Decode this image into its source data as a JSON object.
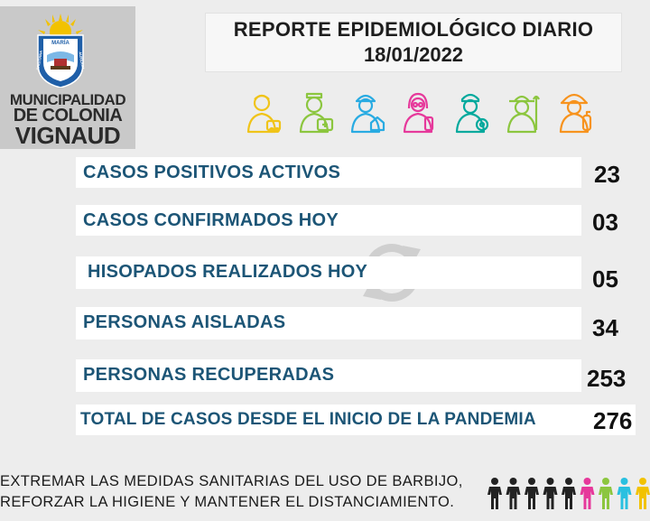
{
  "logo": {
    "line1": "MUNICIPALIDAD",
    "line2": "DE COLONIA",
    "line3": "VIGNAUD",
    "shield_top": "MARÍA",
    "shield_left": "CRISTIANA",
    "shield_right": "AUXILIUM"
  },
  "header": {
    "title": "REPORTE EPIDEMIOLÓGICO DIARIO",
    "date": "18/01/2022"
  },
  "stats": [
    {
      "label": "CASOS POSITIVOS ACTIVOS",
      "value": "23"
    },
    {
      "label": "CASOS CONFIRMADOS HOY",
      "value": "03"
    },
    {
      "label": "HISOPADOS REALIZADOS HOY",
      "value": "05"
    },
    {
      "label": "PERSONAS AISLADAS",
      "value": "34"
    },
    {
      "label": "PERSONAS RECUPERADAS",
      "value": "253"
    },
    {
      "label": "TOTAL DE CASOS DESDE EL INICIO DE LA PANDEMIA",
      "value": "276"
    }
  ],
  "footer": {
    "line1": "EXTREMAR LAS MEDIDAS SANITARIAS DEL USO DE BARBIJO,",
    "line2": "REFORZAR LA HIGIENE Y MANTENER EL DISTANCIAMIENTO."
  },
  "colors": {
    "label_blue": "#1c5576",
    "worker_colors": [
      "#f0c419",
      "#8cc63f",
      "#29abe2",
      "#e6399b",
      "#00a99d",
      "#8cc63f",
      "#f7931e"
    ],
    "people_colors": [
      "#222222",
      "#222222",
      "#222222",
      "#222222",
      "#222222",
      "#e6399b",
      "#8cc63f",
      "#29c0e0",
      "#f2c200"
    ]
  },
  "icons": {
    "workers": [
      "worker-icon",
      "nurse-icon",
      "builder-icon",
      "doctor-icon",
      "chef-icon",
      "farmer-icon",
      "firefighter-icon"
    ],
    "watermark": "refresh-icon"
  }
}
